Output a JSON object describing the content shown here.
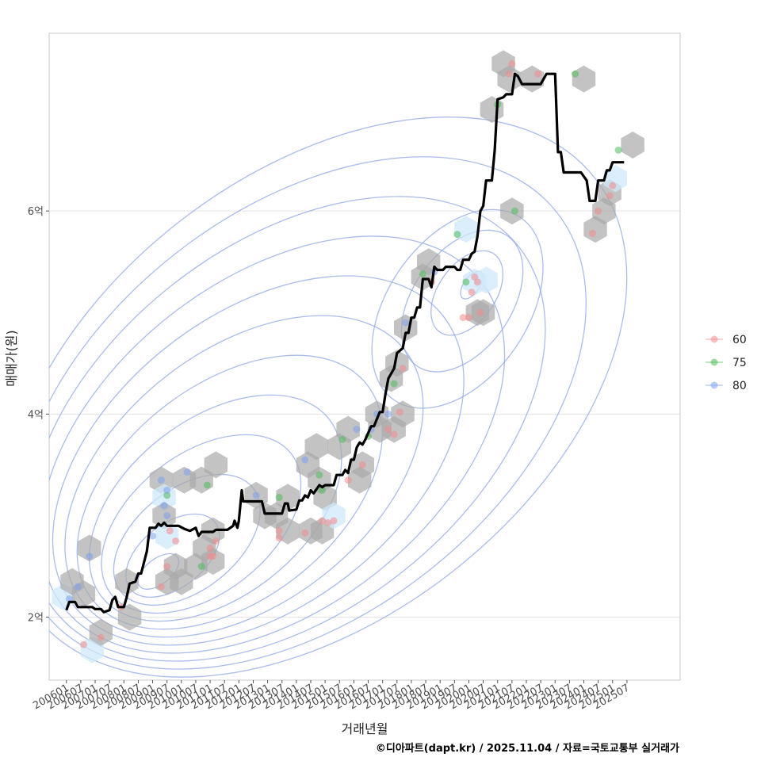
{
  "chart_data": {
    "type": "line",
    "xlabel": "거래년월",
    "ylabel": "매매가(원)",
    "caption": "©디아파트(dapt.kr) / 2025.11.04 / 자료=국토교통부 실거래가",
    "x_ticks": [
      "200601",
      "200607",
      "200701",
      "200707",
      "200801",
      "200807",
      "200901",
      "200907",
      "201001",
      "201007",
      "201101",
      "201107",
      "201201",
      "201207",
      "201301",
      "201307",
      "201401",
      "201407",
      "201501",
      "201507",
      "201601",
      "201607",
      "201701",
      "201707",
      "201801",
      "201807",
      "201901",
      "201907",
      "202001",
      "202007",
      "202101",
      "202107",
      "202201",
      "202207",
      "202301",
      "202307",
      "202401",
      "202407",
      "202501",
      "202507"
    ],
    "y_ticks": [
      {
        "value": 2.0,
        "label": "2억"
      },
      {
        "value": 4.0,
        "label": "4억"
      },
      {
        "value": 6.0,
        "label": "6억"
      }
    ],
    "xlim": [
      2005.4,
      2027.35
    ],
    "ylim": [
      1.38,
      7.75
    ],
    "x_units": "year (decimal)",
    "y_units": "억원",
    "colors": {
      "line": "#000000",
      "hex": "#a9a9a9",
      "hex_light": "#cfe8fa",
      "contour": "#8ea6e6",
      "grid": "#e3e3e3",
      "panel_border": "#c8c8c8",
      "p60": "#f08a8a",
      "p75": "#4dbb5a",
      "p80": "#7ea1f0"
    },
    "legend": {
      "position": "right",
      "entries": [
        {
          "key": "p60",
          "label": "60"
        },
        {
          "key": "p75",
          "label": "75"
        },
        {
          "key": "p80",
          "label": "80"
        }
      ]
    },
    "series": [
      {
        "name": "월별 매매가",
        "points": [
          [
            2006.0,
            2.07
          ],
          [
            2006.1,
            2.15
          ],
          [
            2006.3,
            2.15
          ],
          [
            2006.4,
            2.1
          ],
          [
            2006.9,
            2.1
          ],
          [
            2007.0,
            2.08
          ],
          [
            2007.2,
            2.08
          ],
          [
            2007.3,
            2.05
          ],
          [
            2007.5,
            2.07
          ],
          [
            2007.6,
            2.17
          ],
          [
            2007.7,
            2.2
          ],
          [
            2007.8,
            2.1
          ],
          [
            2008.0,
            2.1
          ],
          [
            2008.1,
            2.2
          ],
          [
            2008.2,
            2.33
          ],
          [
            2008.4,
            2.35
          ],
          [
            2008.5,
            2.43
          ],
          [
            2008.6,
            2.43
          ],
          [
            2008.8,
            2.65
          ],
          [
            2008.9,
            2.88
          ],
          [
            2009.1,
            2.88
          ],
          [
            2009.2,
            2.92
          ],
          [
            2009.3,
            2.9
          ],
          [
            2009.4,
            2.93
          ],
          [
            2009.5,
            2.9
          ],
          [
            2009.9,
            2.9
          ],
          [
            2010.1,
            2.87
          ],
          [
            2010.3,
            2.85
          ],
          [
            2010.5,
            2.88
          ],
          [
            2010.6,
            2.8
          ],
          [
            2010.7,
            2.84
          ],
          [
            2011.1,
            2.84
          ],
          [
            2011.2,
            2.86
          ],
          [
            2011.6,
            2.86
          ],
          [
            2011.8,
            2.9
          ],
          [
            2011.85,
            2.95
          ],
          [
            2011.95,
            2.88
          ],
          [
            2012.0,
            2.95
          ],
          [
            2012.1,
            3.25
          ],
          [
            2012.15,
            3.14
          ],
          [
            2012.8,
            3.14
          ],
          [
            2012.9,
            3.02
          ],
          [
            2013.5,
            3.02
          ],
          [
            2013.6,
            3.12
          ],
          [
            2013.7,
            3.12
          ],
          [
            2013.75,
            3.05
          ],
          [
            2014.0,
            3.06
          ],
          [
            2014.1,
            3.15
          ],
          [
            2014.2,
            3.15
          ],
          [
            2014.3,
            3.2
          ],
          [
            2014.4,
            3.18
          ],
          [
            2014.5,
            3.25
          ],
          [
            2014.6,
            3.22
          ],
          [
            2014.8,
            3.3
          ],
          [
            2014.9,
            3.28
          ],
          [
            2015.0,
            3.3
          ],
          [
            2015.3,
            3.3
          ],
          [
            2015.4,
            3.4
          ],
          [
            2015.6,
            3.4
          ],
          [
            2015.7,
            3.45
          ],
          [
            2015.8,
            3.42
          ],
          [
            2015.9,
            3.55
          ],
          [
            2016.0,
            3.55
          ],
          [
            2016.1,
            3.67
          ],
          [
            2016.2,
            3.72
          ],
          [
            2016.3,
            3.7
          ],
          [
            2016.4,
            3.75
          ],
          [
            2016.6,
            3.88
          ],
          [
            2016.7,
            3.88
          ],
          [
            2016.9,
            4.02
          ],
          [
            2017.0,
            4.02
          ],
          [
            2017.1,
            4.2
          ],
          [
            2017.2,
            4.35
          ],
          [
            2017.4,
            4.45
          ],
          [
            2017.5,
            4.6
          ],
          [
            2017.7,
            4.65
          ],
          [
            2017.8,
            4.8
          ],
          [
            2017.9,
            4.8
          ],
          [
            2018.0,
            4.95
          ],
          [
            2018.1,
            4.95
          ],
          [
            2018.2,
            5.05
          ],
          [
            2018.3,
            5.05
          ],
          [
            2018.4,
            5.33
          ],
          [
            2018.6,
            5.33
          ],
          [
            2018.7,
            5.25
          ],
          [
            2018.8,
            5.45
          ],
          [
            2018.9,
            5.42
          ],
          [
            2019.1,
            5.42
          ],
          [
            2019.2,
            5.45
          ],
          [
            2019.5,
            5.45
          ],
          [
            2019.6,
            5.42
          ],
          [
            2019.7,
            5.42
          ],
          [
            2019.8,
            5.52
          ],
          [
            2020.0,
            5.52
          ],
          [
            2020.1,
            5.58
          ],
          [
            2020.2,
            5.6
          ],
          [
            2020.3,
            5.75
          ],
          [
            2020.4,
            6.0
          ],
          [
            2020.5,
            6.05
          ],
          [
            2020.6,
            6.3
          ],
          [
            2020.8,
            6.3
          ],
          [
            2020.9,
            6.6
          ],
          [
            2021.0,
            7.1
          ],
          [
            2021.2,
            7.12
          ],
          [
            2021.3,
            7.15
          ],
          [
            2021.5,
            7.15
          ],
          [
            2021.6,
            7.35
          ],
          [
            2021.7,
            7.33
          ],
          [
            2021.85,
            7.25
          ],
          [
            2022.5,
            7.25
          ],
          [
            2022.7,
            7.35
          ],
          [
            2023.0,
            7.35
          ],
          [
            2023.1,
            6.58
          ],
          [
            2023.2,
            6.58
          ],
          [
            2023.3,
            6.38
          ],
          [
            2023.9,
            6.38
          ],
          [
            2024.1,
            6.3
          ],
          [
            2024.2,
            6.1
          ],
          [
            2024.4,
            6.1
          ],
          [
            2024.5,
            6.3
          ],
          [
            2024.7,
            6.3
          ],
          [
            2024.8,
            6.4
          ],
          [
            2024.9,
            6.4
          ],
          [
            2025.0,
            6.48
          ],
          [
            2025.4,
            6.48
          ]
        ]
      }
    ],
    "hexbins": [
      [
        2005.9,
        2.2,
        "l"
      ],
      [
        2006.2,
        2.35,
        "d"
      ],
      [
        2006.6,
        2.23,
        "d"
      ],
      [
        2006.8,
        2.68,
        "d"
      ],
      [
        2006.9,
        1.68,
        "l"
      ],
      [
        2007.2,
        1.85,
        "d"
      ],
      [
        2008.1,
        2.35,
        "d"
      ],
      [
        2008.2,
        2.0,
        "d"
      ],
      [
        2009.3,
        3.35,
        "d"
      ],
      [
        2009.4,
        3.18,
        "l"
      ],
      [
        2009.4,
        3.0,
        "d"
      ],
      [
        2009.5,
        2.8,
        "l"
      ],
      [
        2009.5,
        2.35,
        "d"
      ],
      [
        2009.8,
        2.5,
        "d"
      ],
      [
        2010.0,
        2.35,
        "d"
      ],
      [
        2010.1,
        3.35,
        "d"
      ],
      [
        2010.5,
        2.5,
        "d"
      ],
      [
        2010.7,
        3.35,
        "d"
      ],
      [
        2010.8,
        2.68,
        "d"
      ],
      [
        2011.1,
        2.85,
        "d"
      ],
      [
        2011.1,
        2.55,
        "d"
      ],
      [
        2011.2,
        3.5,
        "d"
      ],
      [
        2012.6,
        3.2,
        "d"
      ],
      [
        2012.9,
        3.0,
        "d"
      ],
      [
        2013.3,
        3.0,
        "d"
      ],
      [
        2013.7,
        3.18,
        "d"
      ],
      [
        2013.7,
        2.85,
        "d"
      ],
      [
        2014.4,
        3.5,
        "d"
      ],
      [
        2014.5,
        2.85,
        "d"
      ],
      [
        2014.7,
        3.68,
        "d"
      ],
      [
        2014.8,
        3.35,
        "d"
      ],
      [
        2014.9,
        2.85,
        "d"
      ],
      [
        2015.0,
        3.18,
        "d"
      ],
      [
        2015.3,
        3.0,
        "l"
      ],
      [
        2015.5,
        3.68,
        "d"
      ],
      [
        2015.8,
        3.85,
        "d"
      ],
      [
        2016.2,
        3.35,
        "d"
      ],
      [
        2016.3,
        3.5,
        "d"
      ],
      [
        2016.8,
        4.0,
        "d"
      ],
      [
        2016.9,
        3.85,
        "d"
      ],
      [
        2017.3,
        4.35,
        "d"
      ],
      [
        2017.4,
        3.85,
        "d"
      ],
      [
        2017.5,
        4.5,
        "d"
      ],
      [
        2017.7,
        4.0,
        "d"
      ],
      [
        2017.8,
        4.85,
        "d"
      ],
      [
        2018.4,
        5.35,
        "d"
      ],
      [
        2018.6,
        5.5,
        "d"
      ],
      [
        2019.9,
        5.82,
        "l"
      ],
      [
        2020.2,
        5.3,
        "l"
      ],
      [
        2020.3,
        5.0,
        "d"
      ],
      [
        2020.6,
        5.32,
        "l"
      ],
      [
        2020.5,
        5.0,
        "d"
      ],
      [
        2020.8,
        7.0,
        "d"
      ],
      [
        2021.2,
        7.45,
        "d"
      ],
      [
        2021.4,
        7.3,
        "d"
      ],
      [
        2021.5,
        6.0,
        "d"
      ],
      [
        2022.2,
        7.3,
        "d"
      ],
      [
        2024.0,
        7.3,
        "d"
      ],
      [
        2024.4,
        5.82,
        "d"
      ],
      [
        2024.7,
        6.0,
        "d"
      ],
      [
        2024.9,
        6.18,
        "d"
      ],
      [
        2025.1,
        6.32,
        "l"
      ],
      [
        2025.7,
        6.65,
        "d"
      ]
    ],
    "points": [
      [
        2006.1,
        2.18,
        "p80"
      ],
      [
        2006.4,
        2.3,
        "p80"
      ],
      [
        2006.8,
        2.6,
        "p80"
      ],
      [
        2006.6,
        1.73,
        "p60"
      ],
      [
        2007.2,
        1.8,
        "p60"
      ],
      [
        2007.9,
        2.1,
        "p60"
      ],
      [
        2009.0,
        2.8,
        "p80"
      ],
      [
        2009.3,
        3.35,
        "p80"
      ],
      [
        2009.5,
        3.2,
        "p75"
      ],
      [
        2009.5,
        3.25,
        "p80"
      ],
      [
        2009.4,
        3.1,
        "p80"
      ],
      [
        2009.5,
        3.0,
        "p80"
      ],
      [
        2009.6,
        2.85,
        "p60"
      ],
      [
        2009.8,
        2.75,
        "p60"
      ],
      [
        2009.5,
        2.5,
        "p60"
      ],
      [
        2009.3,
        2.3,
        "p60"
      ],
      [
        2010.2,
        3.43,
        "p80"
      ],
      [
        2010.7,
        2.5,
        "p75"
      ],
      [
        2010.9,
        3.3,
        "p75"
      ],
      [
        2011.0,
        2.68,
        "p60"
      ],
      [
        2011.0,
        2.6,
        "p60"
      ],
      [
        2011.2,
        2.75,
        "p60"
      ],
      [
        2011.1,
        2.6,
        "p60"
      ],
      [
        2012.6,
        3.2,
        "p80"
      ],
      [
        2013.4,
        2.85,
        "p60"
      ],
      [
        2013.4,
        2.78,
        "p60"
      ],
      [
        2013.4,
        3.18,
        "p75"
      ],
      [
        2014.3,
        2.83,
        "p60"
      ],
      [
        2014.3,
        3.55,
        "p80"
      ],
      [
        2014.8,
        3.4,
        "p75"
      ],
      [
        2014.9,
        3.25,
        "p75"
      ],
      [
        2014.9,
        2.95,
        "p60"
      ],
      [
        2015.1,
        2.93,
        "p60"
      ],
      [
        2015.3,
        2.95,
        "p60"
      ],
      [
        2015.6,
        3.75,
        "p75"
      ],
      [
        2015.8,
        3.35,
        "p60"
      ],
      [
        2016.1,
        3.85,
        "p80"
      ],
      [
        2016.3,
        3.5,
        "p60"
      ],
      [
        2016.5,
        3.78,
        "p75"
      ],
      [
        2016.6,
        3.85,
        "p80"
      ],
      [
        2016.8,
        4.0,
        "p80"
      ],
      [
        2017.2,
        4.0,
        "p80"
      ],
      [
        2017.2,
        3.85,
        "p60"
      ],
      [
        2017.4,
        3.8,
        "p60"
      ],
      [
        2017.6,
        4.02,
        "p60"
      ],
      [
        2017.7,
        4.45,
        "p60"
      ],
      [
        2017.4,
        4.3,
        "p75"
      ],
      [
        2017.8,
        4.9,
        "p80"
      ],
      [
        2018.4,
        5.38,
        "p75"
      ],
      [
        2018.7,
        5.3,
        "p60"
      ],
      [
        2018.8,
        5.4,
        "p80"
      ],
      [
        2019.6,
        5.77,
        "p75"
      ],
      [
        2019.9,
        5.3,
        "p75"
      ],
      [
        2019.8,
        4.95,
        "p60"
      ],
      [
        2020.0,
        4.95,
        "p60"
      ],
      [
        2020.1,
        5.2,
        "p60"
      ],
      [
        2020.3,
        5.3,
        "p60"
      ],
      [
        2020.2,
        5.35,
        "p60"
      ],
      [
        2020.4,
        5.0,
        "p60"
      ],
      [
        2021.0,
        7.05,
        "p75"
      ],
      [
        2021.4,
        7.35,
        "p60"
      ],
      [
        2021.5,
        7.45,
        "p60"
      ],
      [
        2021.6,
        6.0,
        "p75"
      ],
      [
        2022.4,
        7.35,
        "p60"
      ],
      [
        2023.7,
        7.35,
        "p75"
      ],
      [
        2024.3,
        5.78,
        "p60"
      ],
      [
        2024.5,
        6.0,
        "p60"
      ],
      [
        2024.9,
        6.15,
        "p60"
      ],
      [
        2025.0,
        6.25,
        "p60"
      ],
      [
        2025.2,
        6.6,
        "p75"
      ]
    ],
    "contours": {
      "center": [
        2009.2,
        2.45
      ],
      "levels": 8,
      "note": "2D density contours of transactions"
    }
  }
}
